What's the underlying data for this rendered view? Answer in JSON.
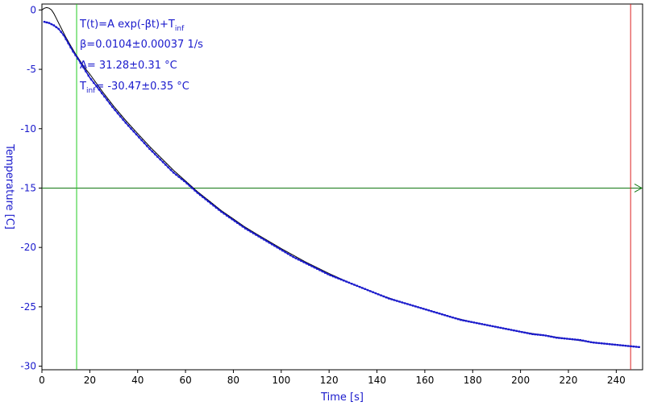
{
  "chart_data": {
    "type": "scatter",
    "xlabel": "Time [s]",
    "ylabel": "Temperature [C]",
    "xlim": [
      0,
      251
    ],
    "ylim": [
      -30.3,
      0.5
    ],
    "xticks": [
      0,
      20,
      40,
      60,
      80,
      100,
      120,
      140,
      160,
      180,
      200,
      220,
      240
    ],
    "yticks": [
      0,
      -5,
      -10,
      -15,
      -20,
      -25,
      -30
    ],
    "grid": false,
    "colors": {
      "data": "#1a1acc",
      "fit": "#000000",
      "cursor_left": "#22cc22",
      "cursor_right": "#dd2222",
      "h_line": "#117711",
      "axis_text": "#1a1acc"
    },
    "fit": {
      "formula": "T(t)=A exp(-βt)+T",
      "formula_sub": "inf",
      "beta_label": "β=0.0104±0.00037 1/s",
      "A_label": "A= 31.28±0.31 °C",
      "tinf_prefix": "T",
      "tinf_sub": "inf",
      "tinf_value": "= -30.47±0.35 °C",
      "A": 31.28,
      "beta": 0.0104,
      "T_inf": -30.47
    },
    "cursors": {
      "left_x": 14.5,
      "right_x": 246,
      "horizontal_y": -15
    },
    "series": [
      {
        "style": "points",
        "x": [
          1,
          3,
          5,
          7,
          9,
          11,
          13,
          15,
          20,
          25,
          30,
          35,
          40,
          45,
          50,
          55,
          60,
          65,
          70,
          75,
          80,
          85,
          90,
          95,
          100,
          105,
          110,
          115,
          120,
          125,
          130,
          135,
          140,
          145,
          150,
          155,
          160,
          165,
          170,
          175,
          180,
          185,
          190,
          195,
          200,
          205,
          210,
          215,
          220,
          225,
          230,
          235,
          240,
          245,
          250
        ],
        "y": [
          -1.0,
          -1.1,
          -1.3,
          -1.6,
          -2.1,
          -2.8,
          -3.5,
          -4.1,
          -5.7,
          -7.0,
          -8.3,
          -9.5,
          -10.6,
          -11.7,
          -12.7,
          -13.7,
          -14.5,
          -15.4,
          -16.2,
          -17.0,
          -17.7,
          -18.4,
          -19.0,
          -19.6,
          -20.2,
          -20.8,
          -21.3,
          -21.8,
          -22.3,
          -22.7,
          -23.1,
          -23.5,
          -23.9,
          -24.3,
          -24.6,
          -24.9,
          -25.2,
          -25.5,
          -25.8,
          -26.1,
          -26.3,
          -26.5,
          -26.7,
          -26.9,
          -27.1,
          -27.3,
          -27.4,
          -27.6,
          -27.7,
          -27.8,
          -28.0,
          -28.1,
          -28.2,
          -28.3,
          -28.4
        ]
      },
      {
        "style": "line",
        "x": [
          0,
          1,
          2,
          3,
          4,
          5,
          6,
          8,
          10,
          12,
          14,
          16,
          18,
          20,
          25,
          30,
          35,
          40,
          45,
          50,
          55,
          60,
          65,
          70,
          75,
          80,
          85,
          90,
          95,
          100,
          110,
          120,
          130,
          140,
          150,
          160,
          170,
          180,
          190,
          200,
          210,
          220,
          230,
          240,
          250
        ],
        "y": [
          0.0,
          0.15,
          0.2,
          0.15,
          0.0,
          -0.3,
          -0.7,
          -1.5,
          -2.3,
          -3.0,
          -3.7,
          -4.3,
          -4.9,
          -5.4,
          -6.8,
          -8.1,
          -9.3,
          -10.4,
          -11.5,
          -12.5,
          -13.5,
          -14.4,
          -15.3,
          -16.1,
          -16.9,
          -17.6,
          -18.3,
          -18.9,
          -19.5,
          -20.1,
          -21.2,
          -22.2,
          -23.1,
          -23.9,
          -24.6,
          -25.2,
          -25.8,
          -26.3,
          -26.7,
          -27.1,
          -27.4,
          -27.7,
          -28.0,
          -28.2,
          -28.4
        ]
      }
    ]
  }
}
